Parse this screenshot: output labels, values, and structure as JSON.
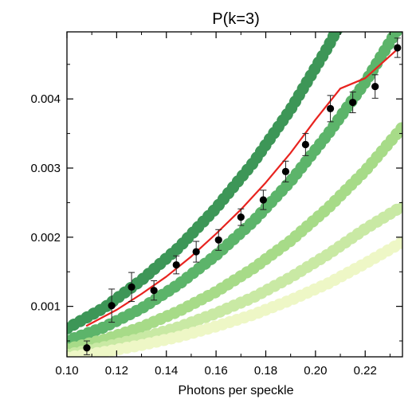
{
  "chart_data": {
    "type": "scatter",
    "title": "P(k=3)",
    "xlabel": "Photons per speckle",
    "ylabel": "",
    "xlim": [
      0.1,
      0.235
    ],
    "ylim": [
      0.00027,
      0.00497
    ],
    "x_ticks": [
      "0.10",
      "0.12",
      "0.14",
      "0.16",
      "0.18",
      "0.20",
      "0.22"
    ],
    "y_ticks": [
      "0.001",
      "0.002",
      "0.003",
      "0.004"
    ],
    "grid": false,
    "legend": "none",
    "band_series": [
      {
        "color": "#3d9657",
        "x": [
          0.1,
          0.115,
          0.13,
          0.145,
          0.16,
          0.175,
          0.19,
          0.205,
          0.22,
          0.235
        ],
        "y": [
          0.00068,
          0.00098,
          0.00138,
          0.00185,
          0.00242,
          0.00308,
          0.00385,
          0.00475,
          0.00578,
          0.00695
        ]
      },
      {
        "color": "#5cb46a",
        "x": [
          0.1,
          0.115,
          0.13,
          0.145,
          0.16,
          0.175,
          0.19,
          0.205,
          0.22,
          0.235
        ],
        "y": [
          0.0005,
          0.0007,
          0.00097,
          0.00132,
          0.00174,
          0.00223,
          0.00281,
          0.00349,
          0.00424,
          0.00512
        ]
      },
      {
        "color": "#a7db88",
        "x": [
          0.1,
          0.115,
          0.13,
          0.145,
          0.16,
          0.175,
          0.19,
          0.205,
          0.22,
          0.235
        ],
        "y": [
          0.00038,
          0.00052,
          0.0007,
          0.00093,
          0.00121,
          0.00155,
          0.00195,
          0.00242,
          0.00296,
          0.00359
        ]
      },
      {
        "color": "#c9e9a4",
        "x": [
          0.1,
          0.115,
          0.13,
          0.145,
          0.16,
          0.175,
          0.19,
          0.205,
          0.22,
          0.235
        ],
        "y": [
          0.0003,
          0.00041,
          0.00054,
          0.0007,
          0.0009,
          0.00113,
          0.00142,
          0.00175,
          0.00212,
          0.00245
        ]
      },
      {
        "color": "#eef7c6",
        "x": [
          0.1,
          0.115,
          0.13,
          0.145,
          0.16,
          0.175,
          0.19,
          0.205,
          0.22,
          0.235
        ],
        "y": [
          0.00026,
          0.00034,
          0.00044,
          0.00056,
          0.00071,
          0.00088,
          0.00109,
          0.00133,
          0.00162,
          0.00193
        ]
      }
    ],
    "fit_line": {
      "color": "#e8231f",
      "x": [
        0.108,
        0.12,
        0.13,
        0.14,
        0.15,
        0.16,
        0.17,
        0.18,
        0.19,
        0.2,
        0.21,
        0.22,
        0.233
      ],
      "y": [
        0.00072,
        0.00095,
        0.00118,
        0.00143,
        0.00172,
        0.00205,
        0.0024,
        0.00279,
        0.00322,
        0.0037,
        0.00415,
        0.0043,
        0.00472
      ]
    },
    "points": {
      "color": "#000000",
      "x": [
        0.108,
        0.118,
        0.126,
        0.135,
        0.144,
        0.152,
        0.161,
        0.17,
        0.179,
        0.188,
        0.196,
        0.206,
        0.215,
        0.224,
        0.233
      ],
      "y": [
        0.0004,
        0.00101,
        0.00128,
        0.00123,
        0.0016,
        0.00179,
        0.00196,
        0.00229,
        0.00254,
        0.00295,
        0.00334,
        0.00386,
        0.00395,
        0.00418,
        0.00474
      ],
      "yerr": [
        0.0001,
        0.00024,
        0.00021,
        0.00014,
        0.00013,
        0.00015,
        0.00015,
        0.00012,
        0.00014,
        0.00015,
        0.00016,
        0.00019,
        0.00015,
        0.00017,
        0.00014
      ]
    }
  }
}
